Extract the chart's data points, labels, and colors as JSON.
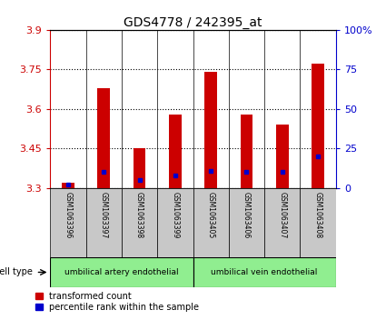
{
  "title": "GDS4778 / 242395_at",
  "samples": [
    "GSM1063396",
    "GSM1063397",
    "GSM1063398",
    "GSM1063399",
    "GSM1063405",
    "GSM1063406",
    "GSM1063407",
    "GSM1063408"
  ],
  "transformed_counts": [
    3.32,
    3.68,
    3.45,
    3.58,
    3.74,
    3.58,
    3.54,
    3.77
  ],
  "percentile_ranks": [
    2,
    10,
    5,
    8,
    11,
    10,
    10,
    20
  ],
  "y_min": 3.3,
  "y_max": 3.9,
  "y_ticks": [
    3.3,
    3.45,
    3.6,
    3.75,
    3.9
  ],
  "right_y_ticks": [
    0,
    25,
    50,
    75,
    100
  ],
  "right_y_labels": [
    "0",
    "25",
    "50",
    "75",
    "100%"
  ],
  "bar_color": "#cc0000",
  "percentile_color": "#0000cc",
  "bar_width": 0.35,
  "cell_type_groups": [
    {
      "label": "umbilical artery endothelial",
      "samples": 4
    },
    {
      "label": "umbilical vein endothelial",
      "samples": 4
    }
  ],
  "legend_items": [
    {
      "label": "transformed count",
      "color": "#cc0000"
    },
    {
      "label": "percentile rank within the sample",
      "color": "#0000cc"
    }
  ],
  "cell_type_label": "cell type",
  "background_color": "#ffffff",
  "tick_color_left": "#cc0000",
  "tick_color_right": "#0000cc",
  "x_tick_bg": "#c8c8c8",
  "cell_type_bg": "#90ee90",
  "fig_width": 4.25,
  "fig_height": 3.63
}
